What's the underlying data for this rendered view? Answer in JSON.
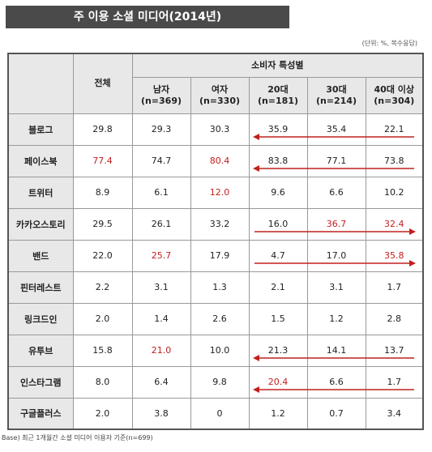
{
  "title": "주 이용 소셜 미디어(2014년)",
  "unit_note": "(단위: %, 복수응답)",
  "base_note": "Base)   최근 1개월간 소셜 미디어 이용자 기준(n=699)",
  "header": {
    "total": "전체",
    "group": "소비자 특성별",
    "columns": [
      {
        "label": "남자",
        "n": "(n=369)"
      },
      {
        "label": "여자",
        "n": "(n=330)"
      },
      {
        "label": "20대",
        "n": "(n=181)"
      },
      {
        "label": "30대",
        "n": "(n=214)"
      },
      {
        "label": "40대 이상",
        "n": "(n=304)"
      }
    ]
  },
  "rows": [
    {
      "name": "블로그",
      "values": [
        "29.8",
        "29.3",
        "30.3",
        "35.9",
        "35.4",
        "22.1"
      ],
      "highlight": [],
      "arrow": "left"
    },
    {
      "name": "페이스북",
      "values": [
        "77.4",
        "74.7",
        "80.4",
        "83.8",
        "77.1",
        "73.8"
      ],
      "highlight": [
        0,
        2
      ],
      "arrow": "left"
    },
    {
      "name": "트위터",
      "values": [
        "8.9",
        "6.1",
        "12.0",
        "9.6",
        "6.6",
        "10.2"
      ],
      "highlight": [
        2
      ],
      "arrow": "none"
    },
    {
      "name": "카카오스토리",
      "values": [
        "29.5",
        "26.1",
        "33.2",
        "16.0",
        "36.7",
        "32.4"
      ],
      "highlight": [
        4,
        5
      ],
      "arrow": "right"
    },
    {
      "name": "밴드",
      "values": [
        "22.0",
        "25.7",
        "17.9",
        "4.7",
        "17.0",
        "35.8"
      ],
      "highlight": [
        1,
        5
      ],
      "arrow": "right"
    },
    {
      "name": "핀터레스트",
      "values": [
        "2.2",
        "3.1",
        "1.3",
        "2.1",
        "3.1",
        "1.7"
      ],
      "highlight": [],
      "arrow": "none"
    },
    {
      "name": "링크드인",
      "values": [
        "2.0",
        "1.4",
        "2.6",
        "1.5",
        "1.2",
        "2.8"
      ],
      "highlight": [],
      "arrow": "none"
    },
    {
      "name": "유투브",
      "values": [
        "15.8",
        "21.0",
        "10.0",
        "21.3",
        "14.1",
        "13.7"
      ],
      "highlight": [
        1
      ],
      "arrow": "left"
    },
    {
      "name": "인스타그램",
      "values": [
        "8.0",
        "6.4",
        "9.8",
        "20.4",
        "6.6",
        "1.7"
      ],
      "highlight": [
        3
      ],
      "arrow": "left"
    },
    {
      "name": "구글플러스",
      "values": [
        "2.0",
        "3.8",
        "0",
        "1.2",
        "0.7",
        "3.4"
      ],
      "highlight": [],
      "arrow": "none"
    }
  ],
  "colors": {
    "highlight": "#c0201e",
    "header_bg": "#e8e8e8",
    "title_bg": "#4a4a4a"
  }
}
